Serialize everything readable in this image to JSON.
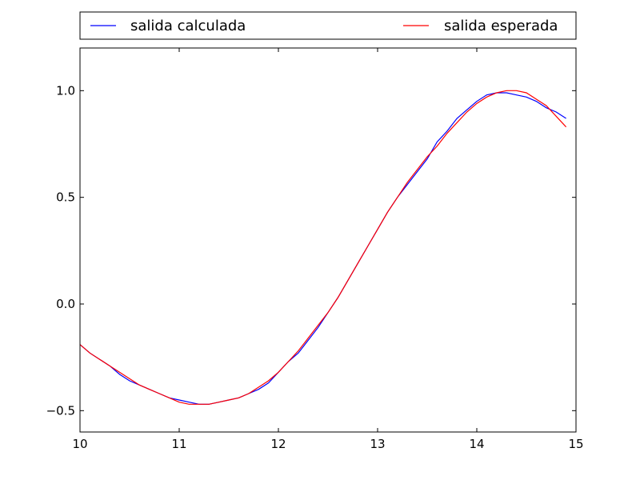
{
  "chart_data": {
    "type": "line",
    "title": "",
    "xlabel": "",
    "ylabel": "",
    "xlim": [
      10,
      15
    ],
    "ylim": [
      -0.6,
      1.2
    ],
    "xticks": [
      10,
      11,
      12,
      13,
      14,
      15
    ],
    "xtick_labels": [
      "10",
      "11",
      "12",
      "13",
      "14",
      "15"
    ],
    "yticks": [
      -0.5,
      0.0,
      0.5,
      1.0
    ],
    "ytick_labels": [
      "−0.5",
      "0.0",
      "0.5",
      "1.0"
    ],
    "grid": false,
    "legend_position": "top, outside plot, two columns",
    "series": [
      {
        "name": "salida calculada",
        "color": "#0000ff",
        "x": [
          10.0,
          10.1,
          10.2,
          10.3,
          10.4,
          10.5,
          10.6,
          10.7,
          10.8,
          10.9,
          11.0,
          11.1,
          11.2,
          11.3,
          11.4,
          11.5,
          11.6,
          11.7,
          11.8,
          11.9,
          12.0,
          12.1,
          12.2,
          12.3,
          12.4,
          12.5,
          12.6,
          12.7,
          12.8,
          12.9,
          13.0,
          13.1,
          13.2,
          13.3,
          13.4,
          13.5,
          13.6,
          13.7,
          13.8,
          13.9,
          14.0,
          14.1,
          14.2,
          14.3,
          14.4,
          14.5,
          14.6,
          14.7,
          14.8,
          14.9
        ],
        "y": [
          -0.19,
          -0.23,
          -0.26,
          -0.29,
          -0.33,
          -0.36,
          -0.38,
          -0.4,
          -0.42,
          -0.44,
          -0.45,
          -0.46,
          -0.47,
          -0.47,
          -0.46,
          -0.45,
          -0.44,
          -0.42,
          -0.4,
          -0.37,
          -0.32,
          -0.27,
          -0.23,
          -0.17,
          -0.11,
          -0.04,
          0.03,
          0.11,
          0.19,
          0.27,
          0.35,
          0.43,
          0.5,
          0.56,
          0.62,
          0.68,
          0.76,
          0.81,
          0.87,
          0.91,
          0.95,
          0.98,
          0.99,
          0.99,
          0.98,
          0.97,
          0.95,
          0.92,
          0.9,
          0.87
        ]
      },
      {
        "name": "salida esperada",
        "color": "#ff0000",
        "x": [
          10.0,
          10.1,
          10.2,
          10.3,
          10.4,
          10.5,
          10.6,
          10.7,
          10.8,
          10.9,
          11.0,
          11.1,
          11.2,
          11.3,
          11.4,
          11.5,
          11.6,
          11.7,
          11.8,
          11.9,
          12.0,
          12.1,
          12.2,
          12.3,
          12.4,
          12.5,
          12.6,
          12.7,
          12.8,
          12.9,
          13.0,
          13.1,
          13.2,
          13.3,
          13.4,
          13.5,
          13.6,
          13.7,
          13.8,
          13.9,
          14.0,
          14.1,
          14.2,
          14.3,
          14.4,
          14.5,
          14.6,
          14.7,
          14.8,
          14.9
        ],
        "y": [
          -0.19,
          -0.23,
          -0.26,
          -0.29,
          -0.32,
          -0.35,
          -0.38,
          -0.4,
          -0.42,
          -0.44,
          -0.46,
          -0.47,
          -0.47,
          -0.47,
          -0.46,
          -0.45,
          -0.44,
          -0.42,
          -0.39,
          -0.36,
          -0.32,
          -0.27,
          -0.22,
          -0.16,
          -0.1,
          -0.04,
          0.03,
          0.11,
          0.19,
          0.27,
          0.35,
          0.43,
          0.5,
          0.57,
          0.63,
          0.69,
          0.74,
          0.8,
          0.85,
          0.9,
          0.94,
          0.97,
          0.99,
          1.0,
          1.0,
          0.99,
          0.96,
          0.93,
          0.88,
          0.83
        ]
      }
    ]
  }
}
